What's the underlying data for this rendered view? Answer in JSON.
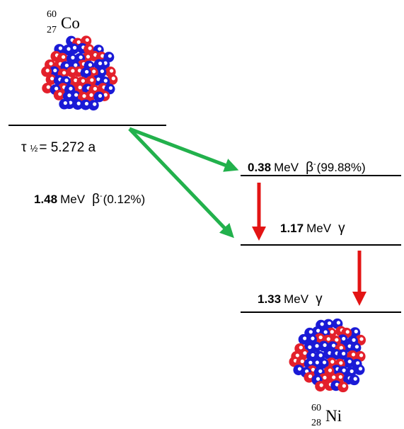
{
  "parent": {
    "mass_number": "60",
    "atomic_number": "27",
    "symbol": "Co"
  },
  "half_life": {
    "symbol": "τ",
    "fraction": "½",
    "text": "= 5.272 a"
  },
  "transitions": [
    {
      "energy": "0.38",
      "unit": "MeV",
      "particle": "β",
      "charge": "-",
      "branch": "(99.88%)"
    },
    {
      "energy": "1.48",
      "unit": "MeV",
      "particle": "β",
      "charge": "-",
      "branch": "(0.12%)"
    },
    {
      "energy": "1.17",
      "unit": "MeV",
      "particle": "γ"
    },
    {
      "energy": "1.33",
      "unit": "MeV",
      "particle": "γ"
    }
  ],
  "daughter": {
    "mass_number": "60",
    "atomic_number": "28",
    "symbol": "Ni"
  }
}
